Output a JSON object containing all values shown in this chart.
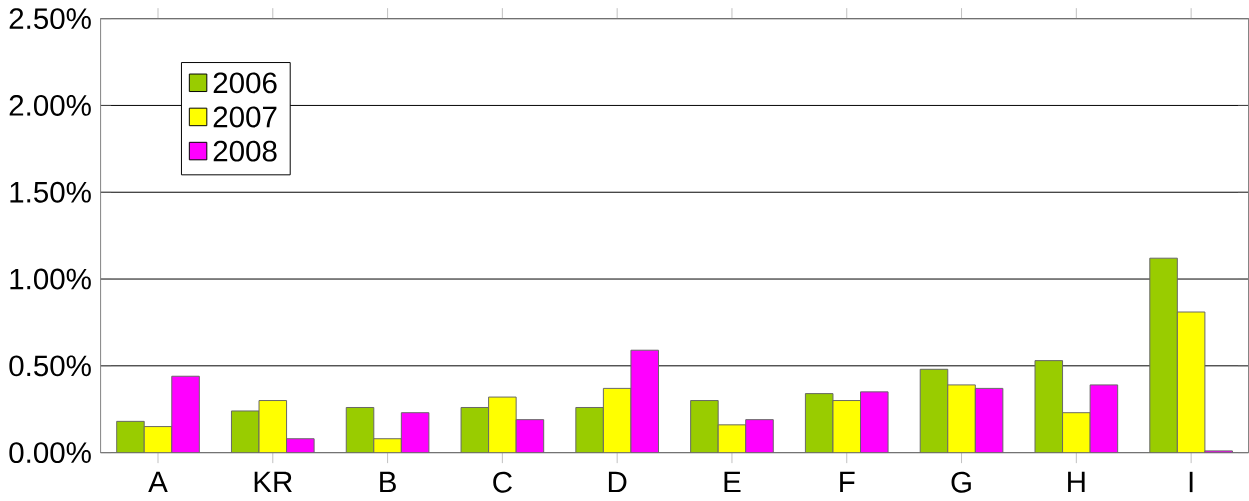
{
  "chart_data": {
    "type": "bar",
    "categories": [
      "A",
      "KR",
      "B",
      "C",
      "D",
      "E",
      "F",
      "G",
      "H",
      "I"
    ],
    "series": [
      {
        "name": "2006",
        "color": "#99cc00",
        "values": [
          0.18,
          0.24,
          0.26,
          0.26,
          0.26,
          0.3,
          0.34,
          0.48,
          0.53,
          1.12
        ]
      },
      {
        "name": "2007",
        "color": "#ffff00",
        "values": [
          0.15,
          0.3,
          0.08,
          0.32,
          0.37,
          0.16,
          0.3,
          0.39,
          0.23,
          0.81
        ]
      },
      {
        "name": "2008",
        "color": "#ff00ff",
        "values": [
          0.44,
          0.08,
          0.23,
          0.19,
          0.59,
          0.19,
          0.35,
          0.37,
          0.39,
          0.01
        ]
      }
    ],
    "ylim": [
      0,
      2.5
    ],
    "yticks": [
      {
        "value": 0,
        "label": "0.00%"
      },
      {
        "value": 0.5,
        "label": "0.50%"
      },
      {
        "value": 1,
        "label": "1.00%"
      },
      {
        "value": 1.5,
        "label": "1.50%"
      },
      {
        "value": 2,
        "label": "2.00%"
      },
      {
        "value": 2.5,
        "label": "2.50%"
      }
    ],
    "grid": "y",
    "legend": "top left"
  }
}
